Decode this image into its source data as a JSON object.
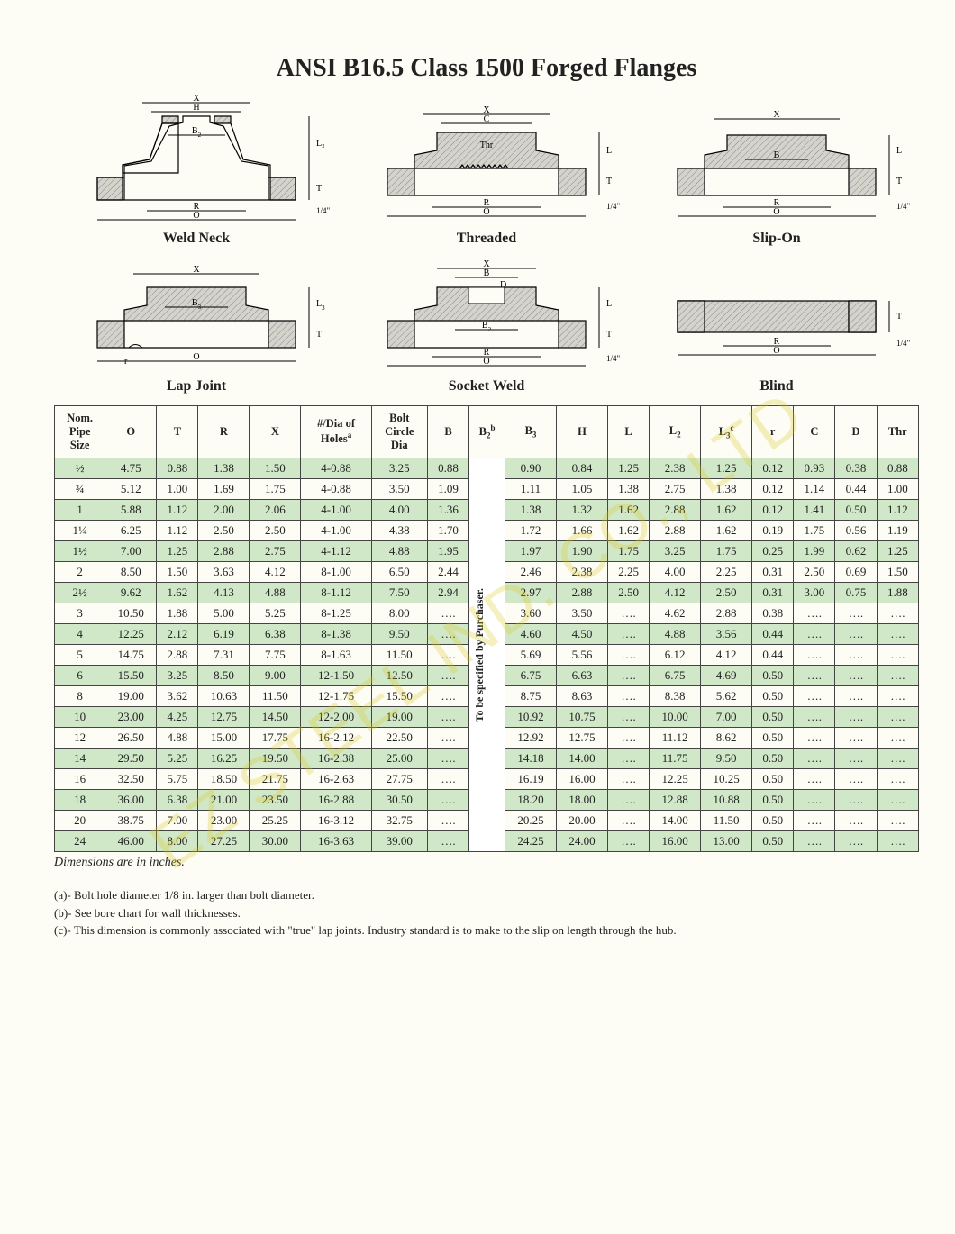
{
  "title": "ANSI B16.5 Class 1500 Forged Flanges",
  "diagram_labels": {
    "weld_neck": "Weld Neck",
    "threaded": "Threaded",
    "slip_on": "Slip-On",
    "lap_joint": "Lap Joint",
    "socket_weld": "Socket Weld",
    "blind": "Blind"
  },
  "diagram_dims": {
    "X": "X",
    "H": "H",
    "B2": "B₂",
    "L2": "L₂",
    "T": "T",
    "R": "R",
    "O": "O",
    "C": "C",
    "Thr": "Thr",
    "L": "L",
    "B": "B",
    "B3": "B₃",
    "r": "r",
    "D": "D",
    "quarter": "1/4\"",
    "L3": "L₃"
  },
  "columns": [
    "Nom.\nPipe\nSize",
    "O",
    "T",
    "R",
    "X",
    "#/Dia of\nHolesᵃ",
    "Bolt\nCircle\nDia",
    "B",
    "B₂ᵇ",
    "B₃",
    "H",
    "L",
    "L₂",
    "L₃ᶜ",
    "r",
    "C",
    "D",
    "Thr"
  ],
  "row_colors": {
    "even": "#ffffff",
    "odd": "#d0e8c8"
  },
  "b2_text": "To be specified by Purchaser.",
  "rows": [
    {
      "alt": true,
      "cells": [
        "½",
        "4.75",
        "0.88",
        "1.38",
        "1.50",
        "4-0.88",
        "3.25",
        "0.88",
        "0.90",
        "0.84",
        "1.25",
        "2.38",
        "1.25",
        "0.12",
        "0.93",
        "0.38",
        "0.88"
      ]
    },
    {
      "alt": false,
      "cells": [
        "¾",
        "5.12",
        "1.00",
        "1.69",
        "1.75",
        "4-0.88",
        "3.50",
        "1.09",
        "1.11",
        "1.05",
        "1.38",
        "2.75",
        "1.38",
        "0.12",
        "1.14",
        "0.44",
        "1.00"
      ]
    },
    {
      "alt": true,
      "cells": [
        "1",
        "5.88",
        "1.12",
        "2.00",
        "2.06",
        "4-1.00",
        "4.00",
        "1.36",
        "1.38",
        "1.32",
        "1.62",
        "2.88",
        "1.62",
        "0.12",
        "1.41",
        "0.50",
        "1.12"
      ]
    },
    {
      "alt": false,
      "cells": [
        "1¼",
        "6.25",
        "1.12",
        "2.50",
        "2.50",
        "4-1.00",
        "4.38",
        "1.70",
        "1.72",
        "1.66",
        "1.62",
        "2.88",
        "1.62",
        "0.19",
        "1.75",
        "0.56",
        "1.19"
      ]
    },
    {
      "alt": true,
      "cells": [
        "1½",
        "7.00",
        "1.25",
        "2.88",
        "2.75",
        "4-1.12",
        "4.88",
        "1.95",
        "1.97",
        "1.90",
        "1.75",
        "3.25",
        "1.75",
        "0.25",
        "1.99",
        "0.62",
        "1.25"
      ]
    },
    {
      "alt": false,
      "cells": [
        "2",
        "8.50",
        "1.50",
        "3.63",
        "4.12",
        "8-1.00",
        "6.50",
        "2.44",
        "2.46",
        "2.38",
        "2.25",
        "4.00",
        "2.25",
        "0.31",
        "2.50",
        "0.69",
        "1.50"
      ]
    },
    {
      "alt": true,
      "cells": [
        "2½",
        "9.62",
        "1.62",
        "4.13",
        "4.88",
        "8-1.12",
        "7.50",
        "2.94",
        "2.97",
        "2.88",
        "2.50",
        "4.12",
        "2.50",
        "0.31",
        "3.00",
        "0.75",
        "1.88"
      ]
    },
    {
      "alt": false,
      "cells": [
        "3",
        "10.50",
        "1.88",
        "5.00",
        "5.25",
        "8-1.25",
        "8.00",
        "….",
        "3.60",
        "3.50",
        "….",
        "4.62",
        "2.88",
        "0.38",
        "….",
        "….",
        "…."
      ]
    },
    {
      "alt": true,
      "cells": [
        "4",
        "12.25",
        "2.12",
        "6.19",
        "6.38",
        "8-1.38",
        "9.50",
        "….",
        "4.60",
        "4.50",
        "….",
        "4.88",
        "3.56",
        "0.44",
        "….",
        "….",
        "…."
      ]
    },
    {
      "alt": false,
      "cells": [
        "5",
        "14.75",
        "2.88",
        "7.31",
        "7.75",
        "8-1.63",
        "11.50",
        "….",
        "5.69",
        "5.56",
        "….",
        "6.12",
        "4.12",
        "0.44",
        "….",
        "….",
        "…."
      ]
    },
    {
      "alt": true,
      "cells": [
        "6",
        "15.50",
        "3.25",
        "8.50",
        "9.00",
        "12-1.50",
        "12.50",
        "….",
        "6.75",
        "6.63",
        "….",
        "6.75",
        "4.69",
        "0.50",
        "….",
        "….",
        "…."
      ]
    },
    {
      "alt": false,
      "cells": [
        "8",
        "19.00",
        "3.62",
        "10.63",
        "11.50",
        "12-1.75",
        "15.50",
        "….",
        "8.75",
        "8.63",
        "….",
        "8.38",
        "5.62",
        "0.50",
        "….",
        "….",
        "…."
      ]
    },
    {
      "alt": true,
      "cells": [
        "10",
        "23.00",
        "4.25",
        "12.75",
        "14.50",
        "12-2.00",
        "19.00",
        "….",
        "10.92",
        "10.75",
        "….",
        "10.00",
        "7.00",
        "0.50",
        "….",
        "….",
        "…."
      ]
    },
    {
      "alt": false,
      "cells": [
        "12",
        "26.50",
        "4.88",
        "15.00",
        "17.75",
        "16-2.12",
        "22.50",
        "….",
        "12.92",
        "12.75",
        "….",
        "11.12",
        "8.62",
        "0.50",
        "….",
        "….",
        "…."
      ]
    },
    {
      "alt": true,
      "cells": [
        "14",
        "29.50",
        "5.25",
        "16.25",
        "19.50",
        "16-2.38",
        "25.00",
        "….",
        "14.18",
        "14.00",
        "….",
        "11.75",
        "9.50",
        "0.50",
        "….",
        "….",
        "…."
      ]
    },
    {
      "alt": false,
      "cells": [
        "16",
        "32.50",
        "5.75",
        "18.50",
        "21.75",
        "16-2.63",
        "27.75",
        "….",
        "16.19",
        "16.00",
        "….",
        "12.25",
        "10.25",
        "0.50",
        "….",
        "….",
        "…."
      ]
    },
    {
      "alt": true,
      "cells": [
        "18",
        "36.00",
        "6.38",
        "21.00",
        "23.50",
        "16-2.88",
        "30.50",
        "….",
        "18.20",
        "18.00",
        "….",
        "12.88",
        "10.88",
        "0.50",
        "….",
        "….",
        "…."
      ]
    },
    {
      "alt": false,
      "cells": [
        "20",
        "38.75",
        "7.00",
        "23.00",
        "25.25",
        "16-3.12",
        "32.75",
        "….",
        "20.25",
        "20.00",
        "….",
        "14.00",
        "11.50",
        "0.50",
        "….",
        "….",
        "…."
      ]
    },
    {
      "alt": true,
      "cells": [
        "24",
        "46.00",
        "8.00",
        "27.25",
        "30.00",
        "16-3.63",
        "39.00",
        "….",
        "24.25",
        "24.00",
        "….",
        "16.00",
        "13.00",
        "0.50",
        "….",
        "….",
        "…."
      ]
    }
  ],
  "caption": "Dimensions are in inches.",
  "footnotes": {
    "a": "(a)-  Bolt hole diameter 1/8 in. larger than bolt diameter.",
    "b": "(b)-  See bore chart for wall thicknesses.",
    "c": "(c)-  This dimension is commonly associated with \"true\" lap joints.  Industry standard is to make to the slip on length through the hub."
  },
  "watermark": "EZ STEEL IND. CO., LTD",
  "style": {
    "title_fontsize": 28,
    "body_font": "Times New Roman",
    "alt_row_bg": "#d0e8c8",
    "border_color": "#444444",
    "text_color": "#222222",
    "hatch_fill": "#d4d4cc",
    "page_bg": "#fdfdf5",
    "watermark_color": "rgba(220,200,30,0.28)"
  }
}
